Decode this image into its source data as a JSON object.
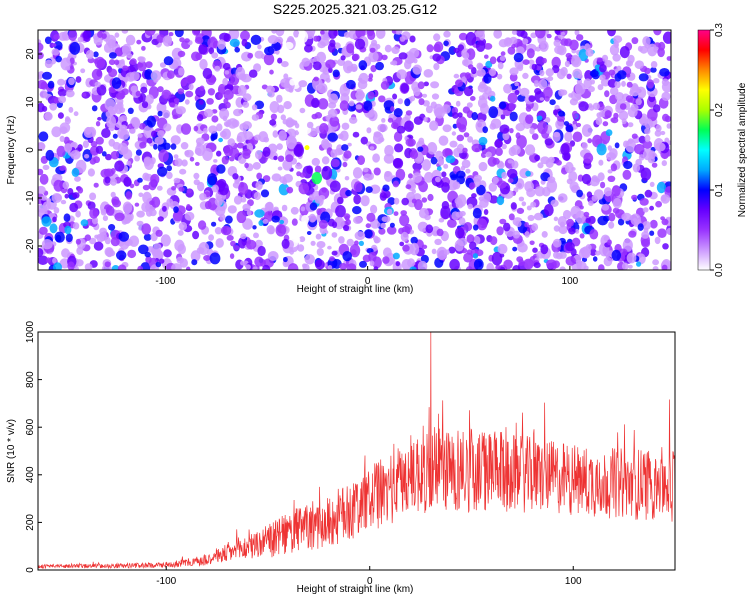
{
  "chart_data": [
    {
      "type": "heatmap",
      "title": "S225.2025.321.03.25.G12",
      "xlabel": "Height of straight line (km)",
      "ylabel": "Frequency (Hz)",
      "xlim": [
        -163,
        150
      ],
      "ylim": [
        -25,
        25
      ],
      "xticks": [
        -100,
        0,
        100
      ],
      "xtick_labels": [
        "-100",
        "0",
        "100"
      ],
      "yticks": [
        -20,
        -10,
        0,
        10,
        20
      ],
      "ytick_labels": [
        "-20",
        "-10",
        "0",
        "10",
        "20"
      ],
      "colorbar": {
        "label": "Normalized spectral amplitude",
        "range": [
          0.0,
          0.3
        ],
        "ticks": [
          0.0,
          0.1,
          0.2,
          0.3
        ],
        "tick_labels": [
          "0.0",
          "0.1",
          "0.2",
          "0.3"
        ],
        "colors": [
          "#ffffff",
          "#cc99ff",
          "#9933ff",
          "#6600ff",
          "#0000ff",
          "#00aaff",
          "#00ffff",
          "#00ff55",
          "#aaff00",
          "#ffff00",
          "#ff8800",
          "#ff0000",
          "#ff0088"
        ]
      },
      "features": {
        "peak_cluster_center": [
          -32,
          -4
        ],
        "peak_value": 0.22,
        "low_amplitude_stripe_x": -35,
        "secondary_clusters": [
          [
            2,
            -2
          ],
          [
            115,
            0
          ],
          [
            95,
            -5
          ]
        ]
      }
    },
    {
      "type": "line",
      "xlabel": "Height of straight line (km)",
      "ylabel": "SNR (10 * v/v)",
      "xlim": [
        -163,
        150
      ],
      "ylim": [
        0,
        1000
      ],
      "xticks": [
        -100,
        0,
        100
      ],
      "xtick_labels": [
        "-100",
        "0",
        "100"
      ],
      "yticks": [
        0,
        200,
        400,
        600,
        800,
        1000
      ],
      "ytick_labels": [
        "0",
        "200",
        "400",
        "600",
        "800",
        "1000"
      ],
      "series": [
        {
          "name": "SNR",
          "color": "#ee3333",
          "x_range": [
            -163,
            150
          ],
          "samples": 1500,
          "envelope_x": [
            -163,
            -120,
            -100,
            -85,
            -70,
            -50,
            -35,
            -20,
            -10,
            0,
            10,
            20,
            30,
            50,
            80,
            110,
            130,
            150
          ],
          "envelope_mean": [
            15,
            18,
            22,
            35,
            70,
            120,
            170,
            200,
            250,
            300,
            340,
            400,
            430,
            420,
            400,
            370,
            360,
            370
          ],
          "envelope_spread": [
            8,
            10,
            12,
            20,
            40,
            70,
            100,
            110,
            130,
            140,
            150,
            170,
            200,
            180,
            160,
            150,
            150,
            170
          ],
          "max_peak": [
            30,
            1000
          ]
        }
      ]
    }
  ]
}
